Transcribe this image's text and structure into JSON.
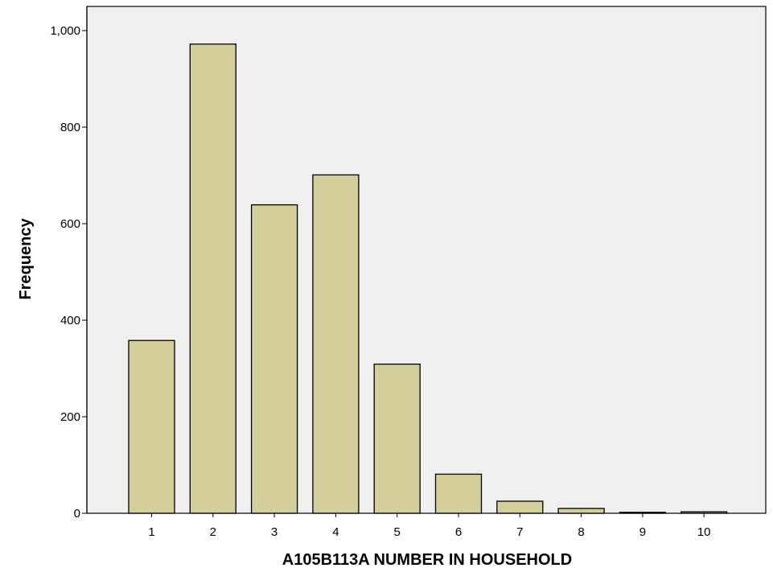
{
  "chart_data": {
    "type": "bar",
    "title": "",
    "xlabel": "A105B113A NUMBER IN HOUSEHOLD",
    "ylabel": "Frequency",
    "categories": [
      "1",
      "2",
      "3",
      "4",
      "5",
      "6",
      "7",
      "8",
      "9",
      "10"
    ],
    "values": [
      358,
      972,
      639,
      701,
      309,
      81,
      25,
      10,
      2,
      3
    ],
    "ylim": [
      0,
      1000
    ],
    "yticks": [
      0,
      200,
      400,
      600,
      800,
      1000
    ],
    "ytick_labels": [
      "0",
      "200",
      "400",
      "600",
      "800",
      "1,000"
    ],
    "grid": false,
    "legend": "none",
    "colors": {
      "bar_fill": "#d3ce9a",
      "bar_stroke": "#000000",
      "plot_background": "#f0f0f0"
    }
  }
}
